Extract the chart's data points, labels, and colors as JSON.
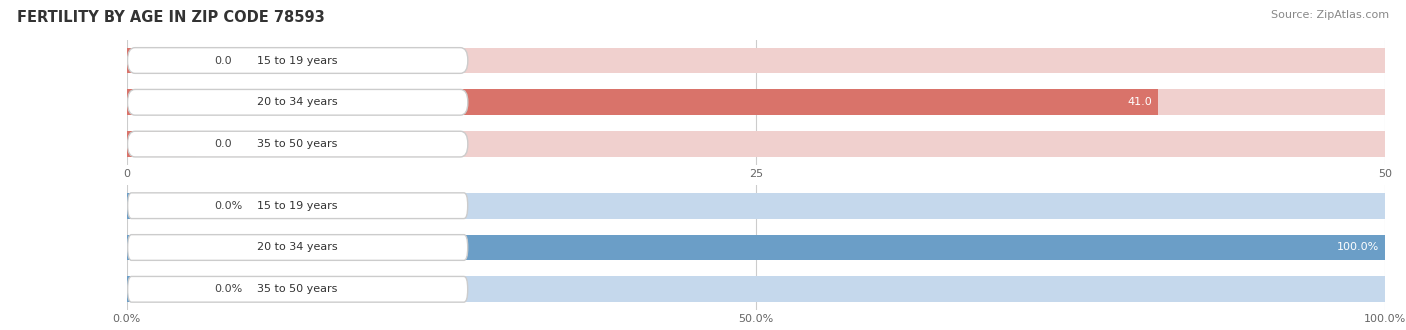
{
  "title": "FERTILITY BY AGE IN ZIP CODE 78593",
  "source": "Source: ZipAtlas.com",
  "background_color": "#ffffff",
  "top_chart": {
    "categories": [
      "15 to 19 years",
      "20 to 34 years",
      "35 to 50 years"
    ],
    "values": [
      0.0,
      41.0,
      0.0
    ],
    "bar_color": "#d9736a",
    "bar_bg_color": "#f0d0ce",
    "xlim": [
      0,
      50
    ],
    "xticks": [
      0.0,
      25.0,
      50.0
    ],
    "value_labels": [
      "0.0",
      "41.0",
      "0.0"
    ]
  },
  "bottom_chart": {
    "categories": [
      "15 to 19 years",
      "20 to 34 years",
      "35 to 50 years"
    ],
    "values": [
      0.0,
      100.0,
      0.0
    ],
    "bar_color": "#6b9ec7",
    "bar_bg_color": "#c5d8ec",
    "xlim": [
      0,
      100
    ],
    "xticks": [
      0.0,
      50.0,
      100.0
    ],
    "xtick_labels": [
      "0.0%",
      "50.0%",
      "100.0%"
    ],
    "value_labels": [
      "0.0%",
      "100.0%",
      "0.0%"
    ]
  }
}
